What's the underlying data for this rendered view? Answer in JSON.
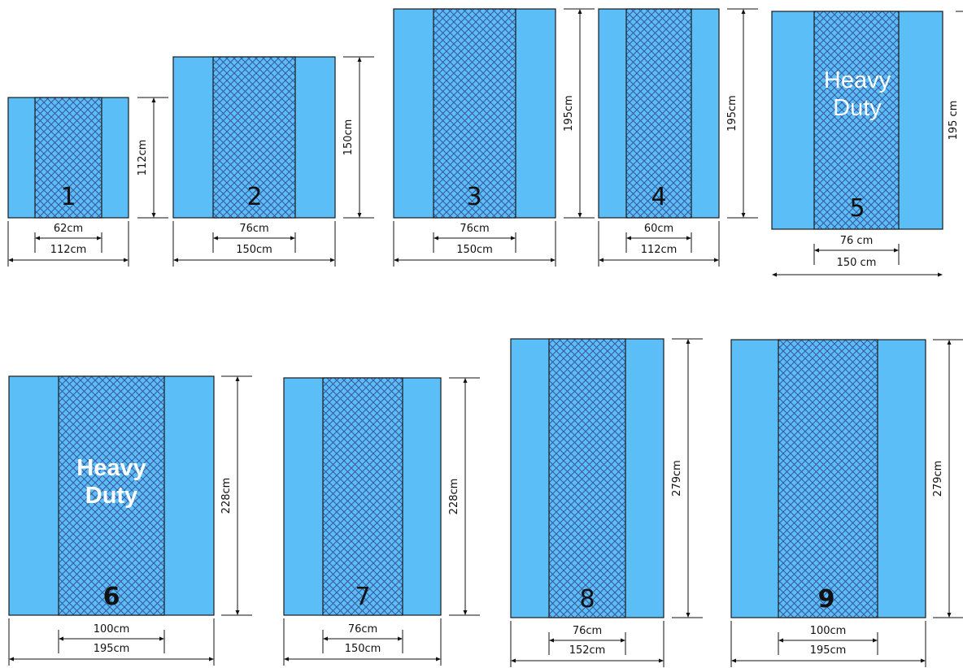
{
  "colors": {
    "panel": "#5bbef7",
    "mesh_line": "#3a5aa0",
    "outline": "#1a1a1a"
  },
  "drapes": [
    {
      "id": "1",
      "number": "1",
      "number_bold": false,
      "center_width": "62cm",
      "total_width": "112cm",
      "height": "112cm",
      "heavy_duty": null
    },
    {
      "id": "2",
      "number": "2",
      "number_bold": false,
      "center_width": "76cm",
      "total_width": "150cm",
      "height": "150cm",
      "heavy_duty": null
    },
    {
      "id": "3",
      "number": "3",
      "number_bold": false,
      "center_width": "76cm",
      "total_width": "150cm",
      "height": "195cm",
      "heavy_duty": null
    },
    {
      "id": "4",
      "number": "4",
      "number_bold": false,
      "center_width": "60cm",
      "total_width": "112cm",
      "height": "195cm",
      "heavy_duty": null
    },
    {
      "id": "5",
      "number": "5",
      "number_bold": false,
      "center_width": "76 cm",
      "total_width": "150 cm",
      "height": "195 cm",
      "heavy_duty": [
        "Heavy",
        "Duty"
      ]
    },
    {
      "id": "6",
      "number": "6",
      "number_bold": true,
      "center_width": "100cm",
      "total_width": "195cm",
      "height": "228cm",
      "heavy_duty": [
        "Heavy",
        "Duty"
      ]
    },
    {
      "id": "7",
      "number": "7",
      "number_bold": false,
      "center_width": "76cm",
      "total_width": "150cm",
      "height": "228cm",
      "heavy_duty": null
    },
    {
      "id": "8",
      "number": "8",
      "number_bold": false,
      "center_width": "76cm",
      "total_width": "152cm",
      "height": "279cm",
      "heavy_duty": null
    },
    {
      "id": "9",
      "number": "9",
      "number_bold": true,
      "center_width": "100cm",
      "total_width": "195cm",
      "height": "279cm",
      "heavy_duty": null
    }
  ]
}
